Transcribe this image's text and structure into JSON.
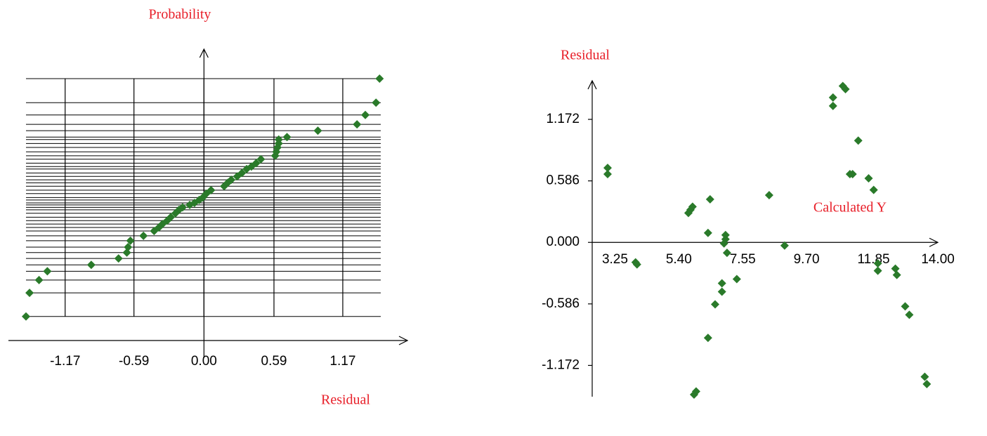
{
  "chart_data": [
    {
      "type": "scatter",
      "ylabel": "Probability",
      "xlabel": "Residual",
      "color": "#2a7a2a",
      "grid": "points",
      "xlim": [
        -1.5,
        1.49
      ],
      "ylim": [
        -2.9,
        3.03
      ],
      "xticks": [
        -1.17,
        -0.59,
        {
          "value": 0,
          "label": "0.00"
        },
        0.59,
        1.17
      ],
      "x": [
        -1.5,
        -1.47,
        -1.39,
        -1.32,
        -0.95,
        -0.72,
        -0.65,
        -0.64,
        -0.62,
        -0.51,
        -0.42,
        -0.38,
        -0.35,
        -0.31,
        -0.28,
        -0.24,
        -0.21,
        -0.18,
        -0.12,
        -0.08,
        -0.04,
        -0.01,
        0.02,
        0.06,
        0.17,
        0.2,
        0.23,
        0.28,
        0.32,
        0.36,
        0.4,
        0.44,
        0.48,
        0.6,
        0.61,
        0.62,
        0.63,
        0.63,
        0.7,
        0.96,
        1.29,
        1.36,
        1.45,
        1.48
      ],
      "values": [
        -2.41,
        -1.93,
        -1.67,
        -1.49,
        -1.36,
        -1.23,
        -1.11,
        -1.0,
        -0.87,
        -0.77,
        -0.67,
        -0.6,
        -0.53,
        -0.46,
        -0.39,
        -0.31,
        -0.24,
        -0.19,
        -0.14,
        -0.1,
        -0.04,
        0.01,
        0.09,
        0.16,
        0.24,
        0.31,
        0.37,
        0.44,
        0.51,
        0.59,
        0.64,
        0.71,
        0.79,
        0.86,
        0.94,
        1.03,
        1.11,
        1.19,
        1.24,
        1.37,
        1.5,
        1.69,
        1.94,
        2.43
      ]
    },
    {
      "type": "scatter",
      "ylabel": "Residual",
      "xlabel": "Calculated Y",
      "color": "#2a7a2a",
      "grid": false,
      "xlim": [
        2.92,
        14.3
      ],
      "ylim": [
        -1.47,
        1.54
      ],
      "xticks": [
        3.25,
        {
          "value": 5.4,
          "label": "5.40"
        },
        7.55,
        {
          "value": 9.7,
          "label": "9.70"
        },
        11.85,
        {
          "value": 14,
          "label": "14.00"
        }
      ],
      "yticks": [
        1.172,
        0.586,
        {
          "value": 0,
          "label": "0.000"
        },
        -0.586,
        -1.172
      ],
      "x": [
        3.44,
        3.44,
        4.38,
        4.43,
        6.16,
        6.23,
        6.3,
        6.89,
        6.82,
        7.41,
        7.41,
        7.36,
        7.46,
        7.29,
        7.29,
        7.06,
        6.82,
        6.42,
        6.35,
        8.88,
        9.4,
        7.79,
        11.03,
        11.03,
        11.36,
        11.45,
        11.88,
        11.6,
        11.69,
        12.23,
        12.4,
        12.54,
        12.54,
        13.13,
        13.18,
        13.46,
        13.6,
        14.12,
        14.19
      ],
      "values": [
        0.71,
        0.65,
        -0.19,
        -0.21,
        0.28,
        0.31,
        0.34,
        0.41,
        0.09,
        0.07,
        0.03,
        -0.01,
        -0.1,
        -0.39,
        -0.47,
        -0.59,
        -0.91,
        -1.42,
        -1.45,
        0.45,
        -0.03,
        -0.35,
        1.38,
        1.3,
        1.49,
        1.46,
        0.97,
        0.65,
        0.65,
        0.61,
        0.5,
        -0.2,
        -0.27,
        -0.25,
        -0.31,
        -0.61,
        -0.69,
        -1.28,
        -1.35
      ]
    }
  ]
}
